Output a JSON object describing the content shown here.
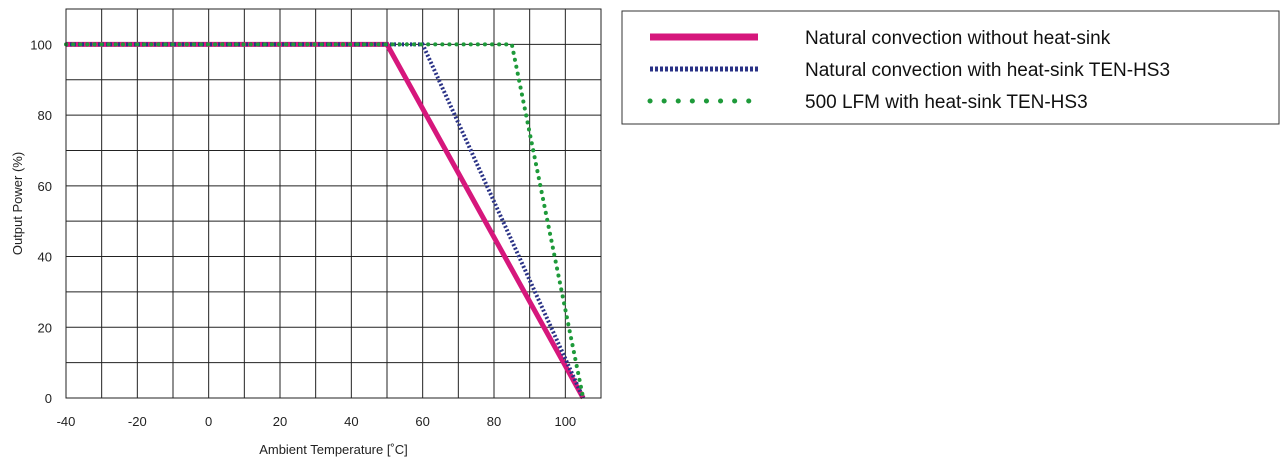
{
  "chart_data": {
    "type": "line",
    "title": "",
    "xlabel": "Ambient Temperature [˚C]",
    "ylabel": "Output Power (%)",
    "xlim": [
      -40,
      110
    ],
    "ylim": [
      0,
      110
    ],
    "x_ticks": [
      -40,
      -20,
      0,
      20,
      40,
      60,
      80,
      100
    ],
    "y_ticks": [
      0,
      20,
      40,
      60,
      80,
      100
    ],
    "x_grid_step": 10,
    "y_grid_step": 10,
    "grid": true,
    "legend_position": "right",
    "series": [
      {
        "name": "Natural convection without heat-sink",
        "color": "#d6177c",
        "style": "solid",
        "x": [
          -40,
          50,
          105
        ],
        "y": [
          100,
          100,
          0
        ]
      },
      {
        "name": "Natural convection with heat-sink TEN-HS3",
        "color": "#2a3286",
        "style": "dense-dotted",
        "x": [
          -40,
          60,
          105
        ],
        "y": [
          100,
          100,
          0
        ]
      },
      {
        "name": "500 LFM with heat-sink TEN-HS3",
        "color": "#1e9a3a",
        "style": "dotted",
        "x": [
          -40,
          85,
          105
        ],
        "y": [
          100,
          100,
          0
        ]
      }
    ]
  }
}
